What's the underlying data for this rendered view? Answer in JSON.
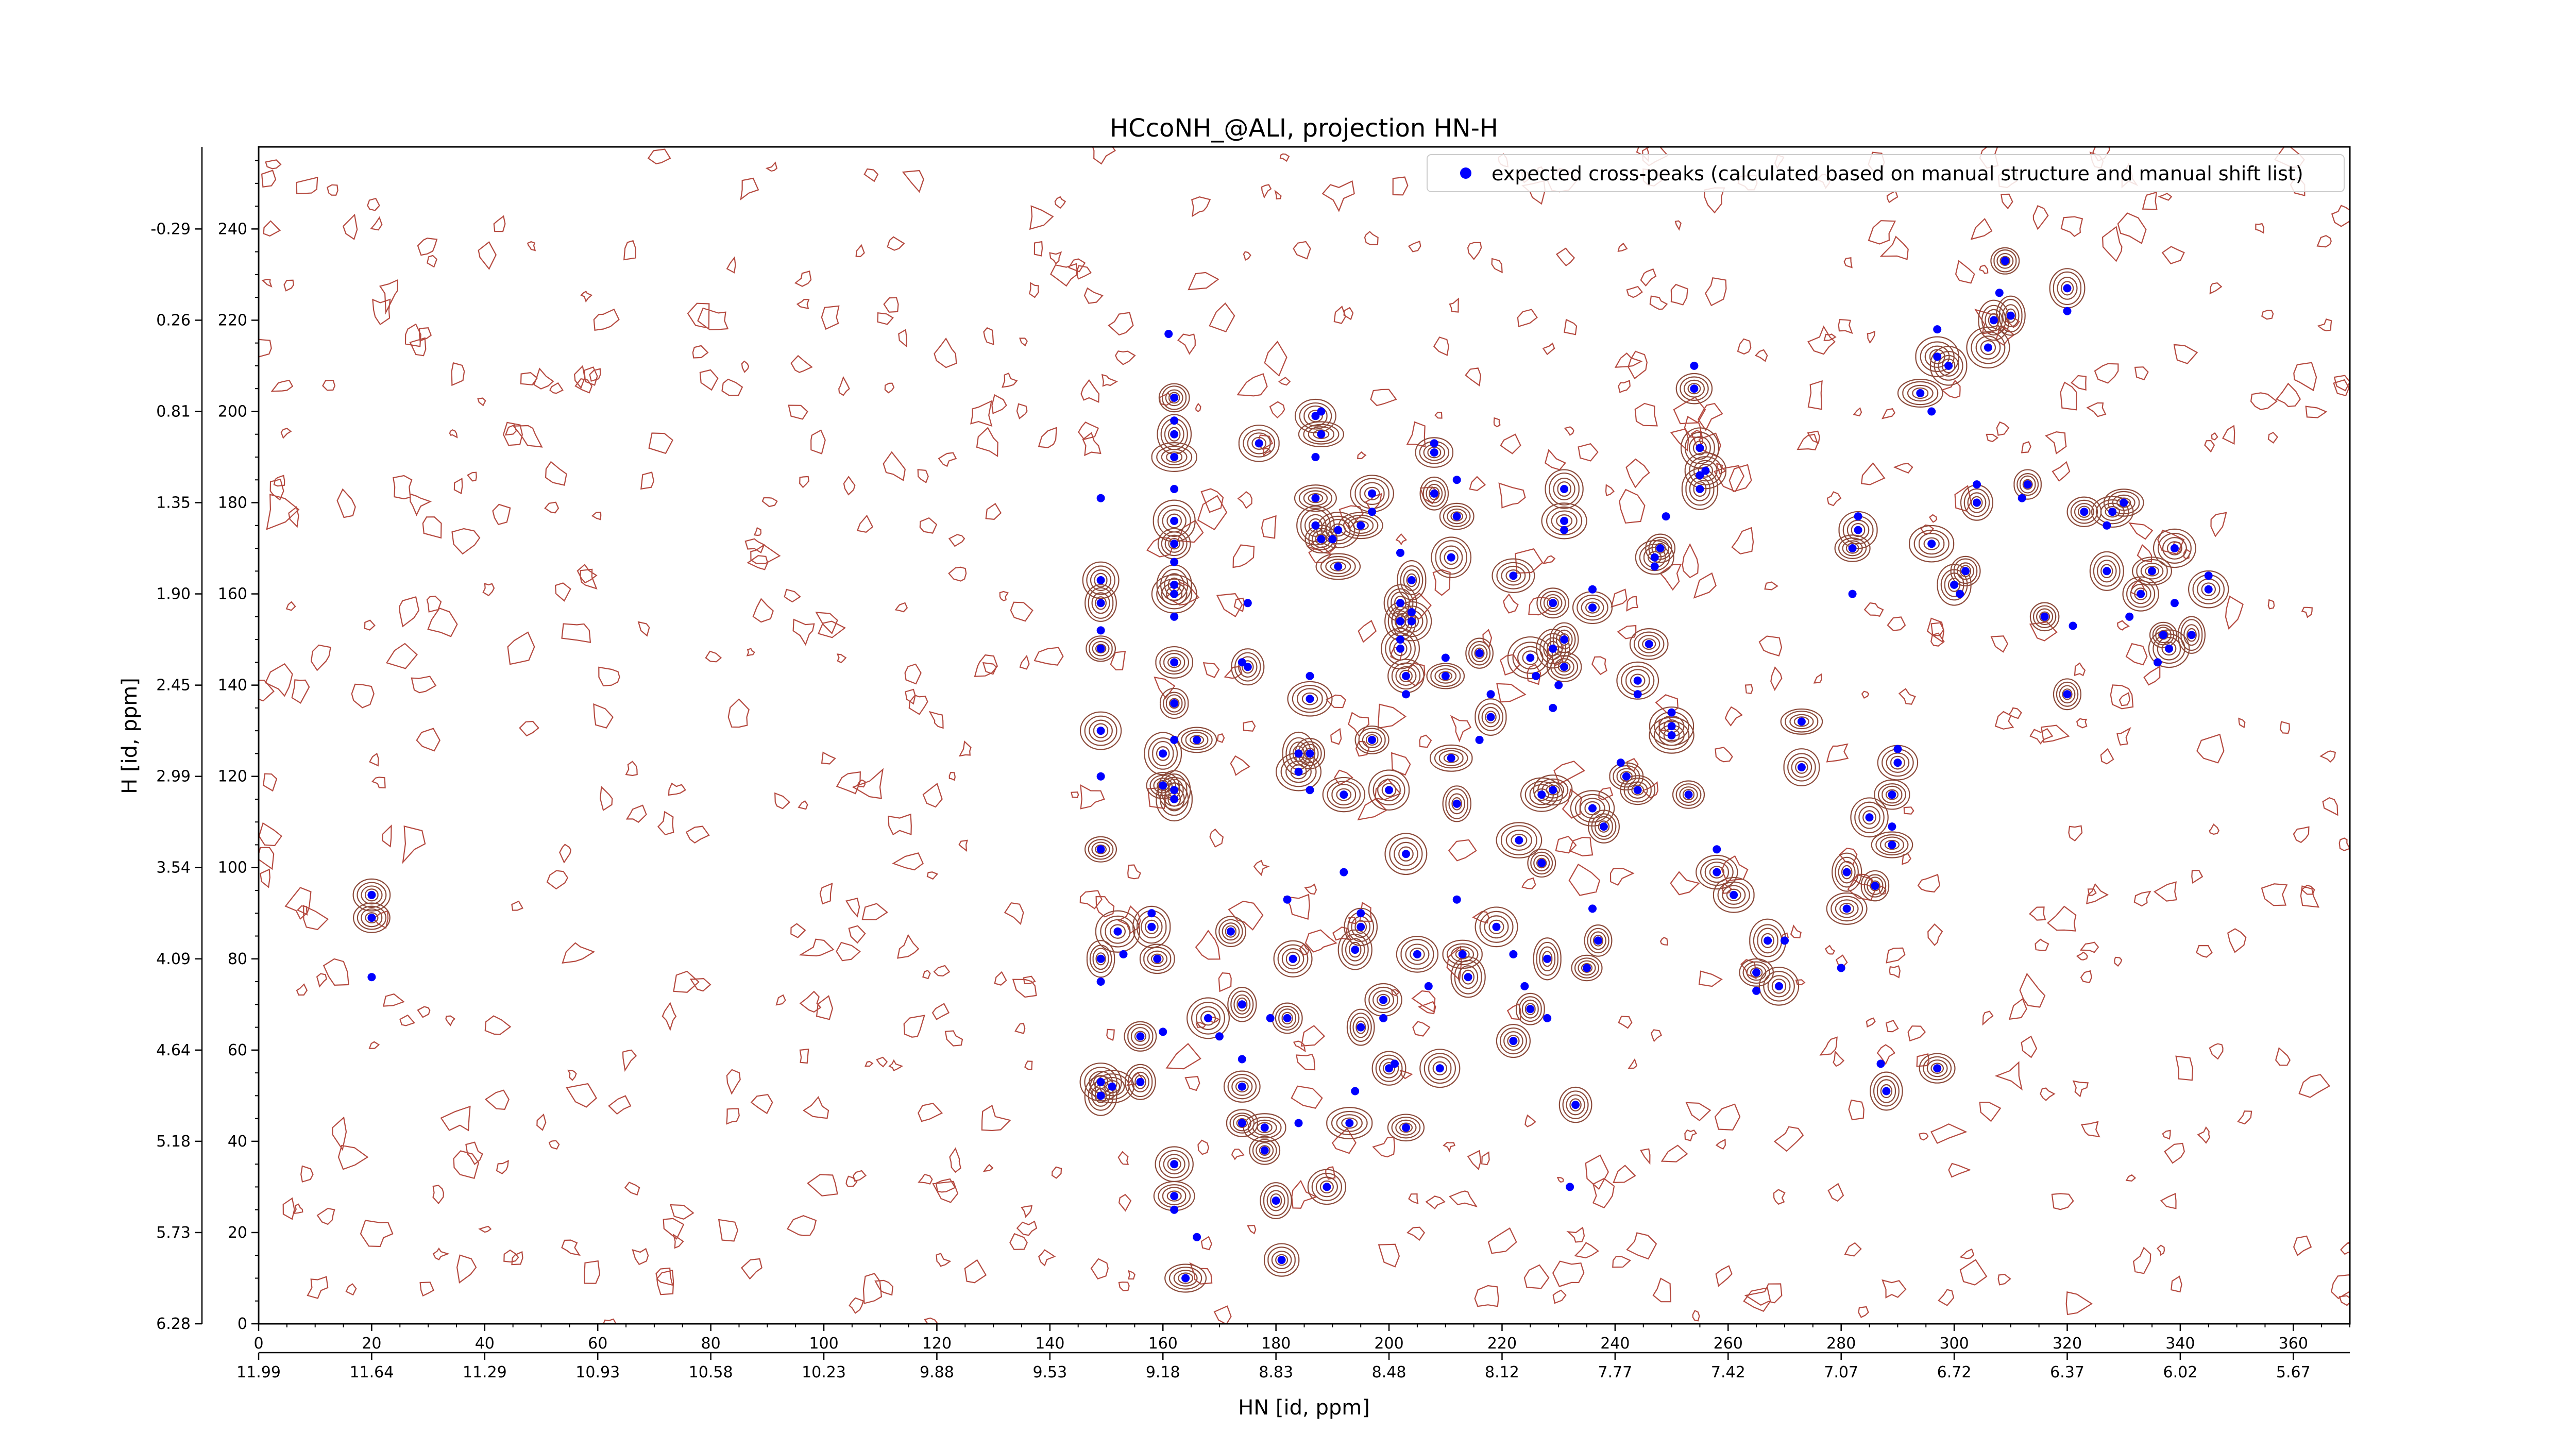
{
  "chart_data": {
    "type": "scatter",
    "title": "HCcoNH_@ALI, projection HN-H",
    "xlabel": "HN [id, ppm]",
    "ylabel": "H [id, ppm]",
    "xlim": [
      0,
      370
    ],
    "ylim": [
      0,
      258
    ],
    "x_ticks": [
      0,
      20,
      40,
      60,
      80,
      100,
      120,
      140,
      160,
      180,
      200,
      220,
      240,
      260,
      280,
      300,
      320,
      340,
      360
    ],
    "y_ticks": [
      0,
      20,
      40,
      60,
      80,
      100,
      120,
      140,
      160,
      180,
      200,
      220,
      240
    ],
    "x_ppm_ticks": [
      "11.99",
      "11.64",
      "11.29",
      "10.93",
      "10.58",
      "10.23",
      "9.88",
      "9.53",
      "9.18",
      "8.83",
      "8.48",
      "8.12",
      "7.77",
      "7.42",
      "7.07",
      "6.72",
      "6.37",
      "6.02",
      "5.67"
    ],
    "y_ppm_ticks": [
      "6.28",
      "5.73",
      "5.18",
      "4.64",
      "4.09",
      "3.54",
      "2.99",
      "2.45",
      "1.90",
      "1.35",
      "0.81",
      "0.26",
      "-0.29"
    ],
    "legend": {
      "position": "top-right",
      "label": "expected cross-peaks (calculated based on manual structure and manual shift list)"
    },
    "colors": {
      "peaks": "#0000ff",
      "contour": "#a0302a",
      "contour_strong": "#8b4a3a",
      "noise": "#b54a40",
      "negative": "#2e8b57"
    },
    "series": [
      {
        "name": "expected cross-peaks (calculated based on manual structure and manual shift list)",
        "points": [
          [
            20,
            94
          ],
          [
            20,
            89
          ],
          [
            20,
            76
          ],
          [
            149,
            50
          ],
          [
            149,
            53
          ],
          [
            149,
            75
          ],
          [
            149,
            80
          ],
          [
            149,
            104
          ],
          [
            149,
            120
          ],
          [
            149,
            130
          ],
          [
            149,
            148
          ],
          [
            149,
            152
          ],
          [
            149,
            158
          ],
          [
            149,
            163
          ],
          [
            149,
            181
          ],
          [
            151,
            52
          ],
          [
            152,
            86
          ],
          [
            153,
            81
          ],
          [
            156,
            53
          ],
          [
            156,
            63
          ],
          [
            158,
            90
          ],
          [
            158,
            87
          ],
          [
            159,
            80
          ],
          [
            160,
            64
          ],
          [
            160,
            125
          ],
          [
            160,
            118
          ],
          [
            161,
            217
          ],
          [
            162,
            35
          ],
          [
            162,
            28
          ],
          [
            162,
            25
          ],
          [
            162,
            115
          ],
          [
            162,
            117
          ],
          [
            162,
            128
          ],
          [
            162,
            136
          ],
          [
            162,
            145
          ],
          [
            162,
            155
          ],
          [
            162,
            160
          ],
          [
            162,
            162
          ],
          [
            162,
            167
          ],
          [
            162,
            171
          ],
          [
            162,
            176
          ],
          [
            162,
            183
          ],
          [
            162,
            190
          ],
          [
            162,
            195
          ],
          [
            162,
            198
          ],
          [
            162,
            203
          ],
          [
            164,
            10
          ],
          [
            166,
            19
          ],
          [
            166,
            128
          ],
          [
            168,
            67
          ],
          [
            170,
            63
          ],
          [
            172,
            86
          ],
          [
            174,
            70
          ],
          [
            174,
            58
          ],
          [
            174,
            52
          ],
          [
            174,
            44
          ],
          [
            174,
            145
          ],
          [
            175,
            144
          ],
          [
            177,
            193
          ],
          [
            175,
            158
          ],
          [
            178,
            38
          ],
          [
            178,
            43
          ],
          [
            179,
            67
          ],
          [
            180,
            27
          ],
          [
            181,
            14
          ],
          [
            182,
            93
          ],
          [
            182,
            67
          ],
          [
            183,
            80
          ],
          [
            184,
            44
          ],
          [
            184,
            125
          ],
          [
            184,
            121
          ],
          [
            186,
            117
          ],
          [
            186,
            137
          ],
          [
            186,
            125
          ],
          [
            186,
            142
          ],
          [
            187,
            175
          ],
          [
            187,
            181
          ],
          [
            187,
            190
          ],
          [
            187,
            199
          ],
          [
            188,
            195
          ],
          [
            188,
            200
          ],
          [
            188,
            172
          ],
          [
            189,
            30
          ],
          [
            190,
            172
          ],
          [
            191,
            166
          ],
          [
            191,
            174
          ],
          [
            192,
            99
          ],
          [
            192,
            116
          ],
          [
            193,
            44
          ],
          [
            194,
            51
          ],
          [
            194,
            82
          ],
          [
            195,
            87
          ],
          [
            195,
            90
          ],
          [
            195,
            65
          ],
          [
            195,
            175
          ],
          [
            197,
            178
          ],
          [
            197,
            182
          ],
          [
            197,
            128
          ],
          [
            199,
            67
          ],
          [
            199,
            71
          ],
          [
            200,
            56
          ],
          [
            201,
            57
          ],
          [
            200,
            117
          ],
          [
            202,
            148
          ],
          [
            202,
            150
          ],
          [
            202,
            154
          ],
          [
            202,
            158
          ],
          [
            202,
            169
          ],
          [
            203,
            43
          ],
          [
            203,
            103
          ],
          [
            203,
            138
          ],
          [
            203,
            142
          ],
          [
            204,
            154
          ],
          [
            204,
            156
          ],
          [
            204,
            163
          ],
          [
            205,
            81
          ],
          [
            207,
            74
          ],
          [
            208,
            182
          ],
          [
            208,
            191
          ],
          [
            208,
            193
          ],
          [
            209,
            56
          ],
          [
            210,
            142
          ],
          [
            210,
            146
          ],
          [
            211,
            124
          ],
          [
            211,
            168
          ],
          [
            212,
            93
          ],
          [
            212,
            114
          ],
          [
            212,
            177
          ],
          [
            212,
            185
          ],
          [
            213,
            81
          ],
          [
            214,
            76
          ],
          [
            216,
            128
          ],
          [
            216,
            147
          ],
          [
            218,
            133
          ],
          [
            218,
            138
          ],
          [
            219,
            87
          ],
          [
            222,
            62
          ],
          [
            222,
            81
          ],
          [
            222,
            164
          ],
          [
            223,
            106
          ],
          [
            224,
            74
          ],
          [
            225,
            69
          ],
          [
            225,
            146
          ],
          [
            226,
            142
          ],
          [
            227,
            101
          ],
          [
            227,
            116
          ],
          [
            228,
            67
          ],
          [
            228,
            80
          ],
          [
            229,
            117
          ],
          [
            229,
            135
          ],
          [
            229,
            148
          ],
          [
            229,
            158
          ],
          [
            230,
            140
          ],
          [
            231,
            144
          ],
          [
            231,
            150
          ],
          [
            231,
            174
          ],
          [
            231,
            176
          ],
          [
            231,
            183
          ],
          [
            232,
            30
          ],
          [
            233,
            48
          ],
          [
            235,
            78
          ],
          [
            236,
            91
          ],
          [
            236,
            113
          ],
          [
            236,
            157
          ],
          [
            236,
            161
          ],
          [
            237,
            84
          ],
          [
            238,
            109
          ],
          [
            241,
            123
          ],
          [
            242,
            120
          ],
          [
            244,
            117
          ],
          [
            244,
            138
          ],
          [
            244,
            141
          ],
          [
            246,
            149
          ],
          [
            247,
            166
          ],
          [
            247,
            168
          ],
          [
            248,
            170
          ],
          [
            249,
            177
          ],
          [
            250,
            129
          ],
          [
            250,
            131
          ],
          [
            250,
            134
          ],
          [
            253,
            116
          ],
          [
            254,
            205
          ],
          [
            254,
            210
          ],
          [
            255,
            192
          ],
          [
            255,
            183
          ],
          [
            255,
            186
          ],
          [
            256,
            187
          ],
          [
            258,
            99
          ],
          [
            258,
            104
          ],
          [
            261,
            94
          ],
          [
            265,
            77
          ],
          [
            265,
            73
          ],
          [
            267,
            84
          ],
          [
            269,
            74
          ],
          [
            270,
            84
          ],
          [
            273,
            122
          ],
          [
            273,
            132
          ],
          [
            280,
            78
          ],
          [
            281,
            91
          ],
          [
            281,
            99
          ],
          [
            282,
            160
          ],
          [
            282,
            170
          ],
          [
            283,
            174
          ],
          [
            283,
            177
          ],
          [
            285,
            111
          ],
          [
            286,
            96
          ],
          [
            287,
            57
          ],
          [
            288,
            51
          ],
          [
            289,
            105
          ],
          [
            289,
            109
          ],
          [
            289,
            116
          ],
          [
            290,
            123
          ],
          [
            290,
            126
          ],
          [
            294,
            204
          ],
          [
            296,
            171
          ],
          [
            296,
            200
          ],
          [
            297,
            56
          ],
          [
            297,
            212
          ],
          [
            297,
            218
          ],
          [
            299,
            210
          ],
          [
            300,
            162
          ],
          [
            301,
            160
          ],
          [
            302,
            165
          ],
          [
            304,
            180
          ],
          [
            304,
            184
          ],
          [
            306,
            214
          ],
          [
            307,
            220
          ],
          [
            308,
            226
          ],
          [
            309,
            233
          ],
          [
            310,
            221
          ],
          [
            312,
            181
          ],
          [
            313,
            184
          ],
          [
            316,
            155
          ],
          [
            320,
            222
          ],
          [
            320,
            227
          ],
          [
            320,
            138
          ],
          [
            321,
            153
          ],
          [
            323,
            178
          ],
          [
            327,
            165
          ],
          [
            327,
            175
          ],
          [
            328,
            178
          ],
          [
            330,
            180
          ],
          [
            331,
            155
          ],
          [
            333,
            160
          ],
          [
            335,
            165
          ],
          [
            336,
            145
          ],
          [
            337,
            151
          ],
          [
            338,
            148
          ],
          [
            339,
            158
          ],
          [
            339,
            170
          ],
          [
            342,
            151
          ],
          [
            345,
            164
          ],
          [
            345,
            161
          ]
        ]
      }
    ]
  }
}
